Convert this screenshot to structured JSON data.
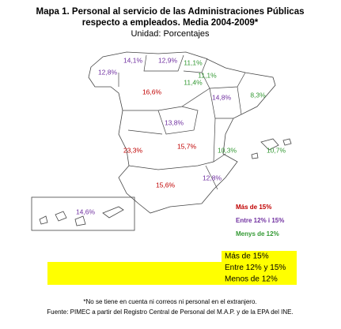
{
  "title": [
    "Mapa 1. Personal al servicio de las Administraciones Públicas",
    "respecto a empleados. Media 2004-2009*"
  ],
  "subtitle": "Unidad: Porcentajes",
  "regions": [
    {
      "label": "12,8%",
      "color": "#7030a0"
    },
    {
      "label": "14,1%",
      "color": "#7030a0"
    },
    {
      "label": "12,9%",
      "color": "#7030a0"
    },
    {
      "label": "11,1%",
      "color": "#339933"
    },
    {
      "label": "11,1%",
      "color": "#339933"
    },
    {
      "label": "11,4%",
      "color": "#339933"
    },
    {
      "label": "16,6%",
      "color": "#c00000"
    },
    {
      "label": "14,8%",
      "color": "#7030a0"
    },
    {
      "label": "8,3%",
      "color": "#339933"
    },
    {
      "label": "13,8%",
      "color": "#7030a0"
    },
    {
      "label": "15,7%",
      "color": "#c00000"
    },
    {
      "label": "23,3%",
      "color": "#c00000"
    },
    {
      "label": "10,3%",
      "color": "#339933"
    },
    {
      "label": "10,7%",
      "color": "#339933"
    },
    {
      "label": "12,8%",
      "color": "#7030a0"
    },
    {
      "label": "15,6%",
      "color": "#c00000"
    },
    {
      "label": "14,6%",
      "color": "#7030a0"
    }
  ],
  "legend": [
    {
      "label": "Más de 15%",
      "color": "#c00000"
    },
    {
      "label": "Entre 12% i 15%",
      "color": "#7030a0"
    },
    {
      "label": "Menys de 12%",
      "color": "#339933"
    }
  ],
  "legend_box": [
    "Más de 15%",
    "Entre 12% y 15%",
    "Menos de 12%"
  ],
  "notes": [
    "*No se tiene en cuenta ni correos ni personal en el extranjero.",
    "Fuente: PIMEC a partir del Registro Central de Personal del M.A.P. y de la EPA del INE."
  ]
}
